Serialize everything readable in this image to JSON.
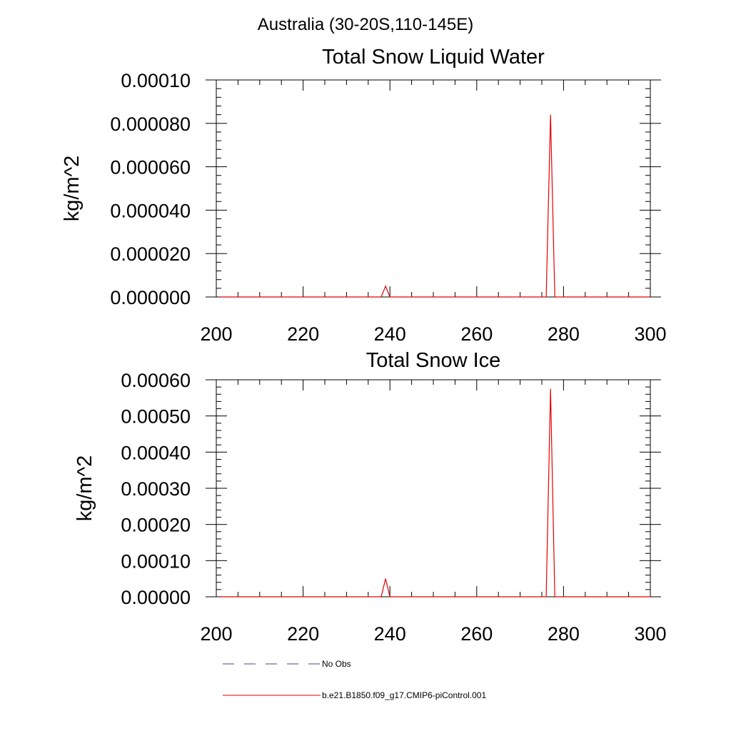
{
  "figure": {
    "suptitle": "Australia (30-20S,110-145E)"
  },
  "legend": {
    "entries": [
      {
        "label": "No Obs",
        "color": "#3b4a8c",
        "style": "dashed"
      },
      {
        "label": "b.e21.B1850.f09_g17.CMIP6-piControl.001",
        "color": "#e60000",
        "style": "solid"
      }
    ]
  },
  "chart_data": [
    {
      "type": "line",
      "title": "Total Snow Liquid Water",
      "xlabel": "",
      "ylabel": "kg/m^2",
      "xlim": [
        200,
        300
      ],
      "ylim": [
        0,
        0.0001
      ],
      "xticks": [
        200,
        220,
        240,
        260,
        280,
        300
      ],
      "xtick_labels": [
        "200",
        "220",
        "240",
        "260",
        "280",
        "300"
      ],
      "yticks": [
        0,
        2e-05,
        4e-05,
        6e-05,
        8e-05,
        0.0001
      ],
      "ytick_labels": [
        "0.000000",
        "0.000020",
        "0.000040",
        "0.000060",
        "0.000080",
        "0.00010"
      ],
      "series": [
        {
          "name": "b.e21.B1850.f09_g17.CMIP6-piControl.001",
          "color": "#e60000",
          "x": [
            201,
            238,
            239,
            240,
            276,
            277,
            278,
            300
          ],
          "y": [
            0,
            0,
            5e-06,
            0,
            0,
            8.4e-05,
            0,
            0
          ]
        }
      ]
    },
    {
      "type": "line",
      "title": "Total Snow Ice",
      "xlabel": "",
      "ylabel": "kg/m^2",
      "xlim": [
        200,
        300
      ],
      "ylim": [
        0,
        0.0006
      ],
      "xticks": [
        200,
        220,
        240,
        260,
        280,
        300
      ],
      "xtick_labels": [
        "200",
        "220",
        "240",
        "260",
        "280",
        "300"
      ],
      "yticks": [
        0,
        0.0001,
        0.0002,
        0.0003,
        0.0004,
        0.0005,
        0.0006
      ],
      "ytick_labels": [
        "0.00000",
        "0.00010",
        "0.00020",
        "0.00030",
        "0.00040",
        "0.00050",
        "0.00060"
      ],
      "series": [
        {
          "name": "b.e21.B1850.f09_g17.CMIP6-piControl.001",
          "color": "#e60000",
          "x": [
            201,
            238,
            239,
            240,
            276,
            277,
            278,
            300
          ],
          "y": [
            0,
            0,
            5e-05,
            0,
            0,
            0.000575,
            0,
            0
          ]
        }
      ]
    }
  ]
}
